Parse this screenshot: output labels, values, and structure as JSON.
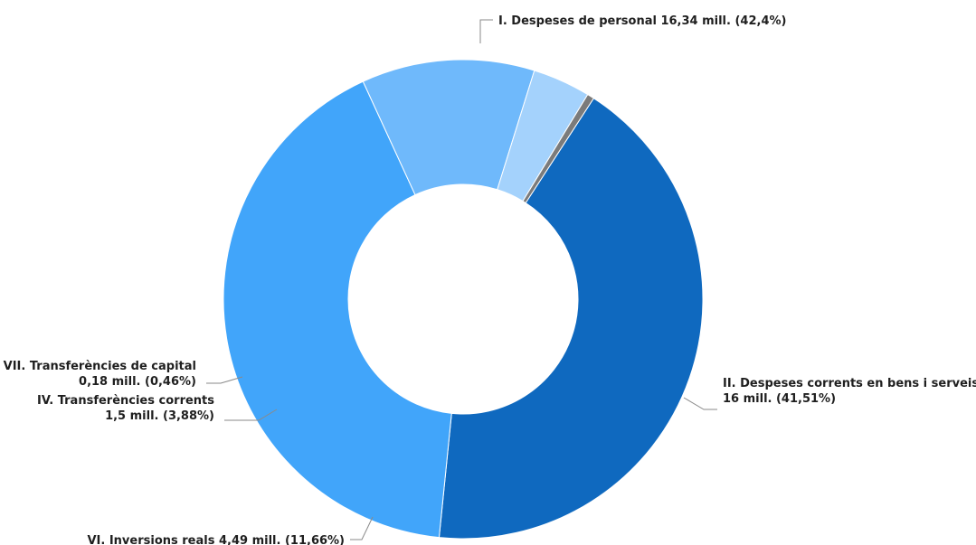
{
  "chart_data": {
    "type": "pie",
    "donut": true,
    "title": "",
    "categories": [
      "I. Despeses de personal",
      "II. Despeses corrents en bens i serveis",
      "VI. Inversions reals",
      "IV. Transferències corrents",
      "VII. Transferències de capital"
    ],
    "values": [
      16.34,
      16,
      4.49,
      1.5,
      0.18
    ],
    "percentages": [
      42.4,
      41.51,
      11.66,
      3.88,
      0.46
    ],
    "colors": [
      "#0f69bf",
      "#41a5fa",
      "#6fb9fb",
      "#a4d2fc",
      "#7b7b7b"
    ],
    "labels": [
      {
        "line1": "I. Despeses de personal 16,34 mill. (42,4%)",
        "line2": ""
      },
      {
        "line1": "II. Despeses corrents en bens i serveis",
        "line2": "16 mill. (41,51%)"
      },
      {
        "line1": "VI. Inversions reals 4,49 mill. (11,66%)",
        "line2": ""
      },
      {
        "line1": "IV. Transferències corrents",
        "line2": "1,5 mill. (3,88%)"
      },
      {
        "line1": "VII. Transferències de capital",
        "line2": "0,18 mill. (0,46%)"
      }
    ],
    "legend": "none"
  }
}
